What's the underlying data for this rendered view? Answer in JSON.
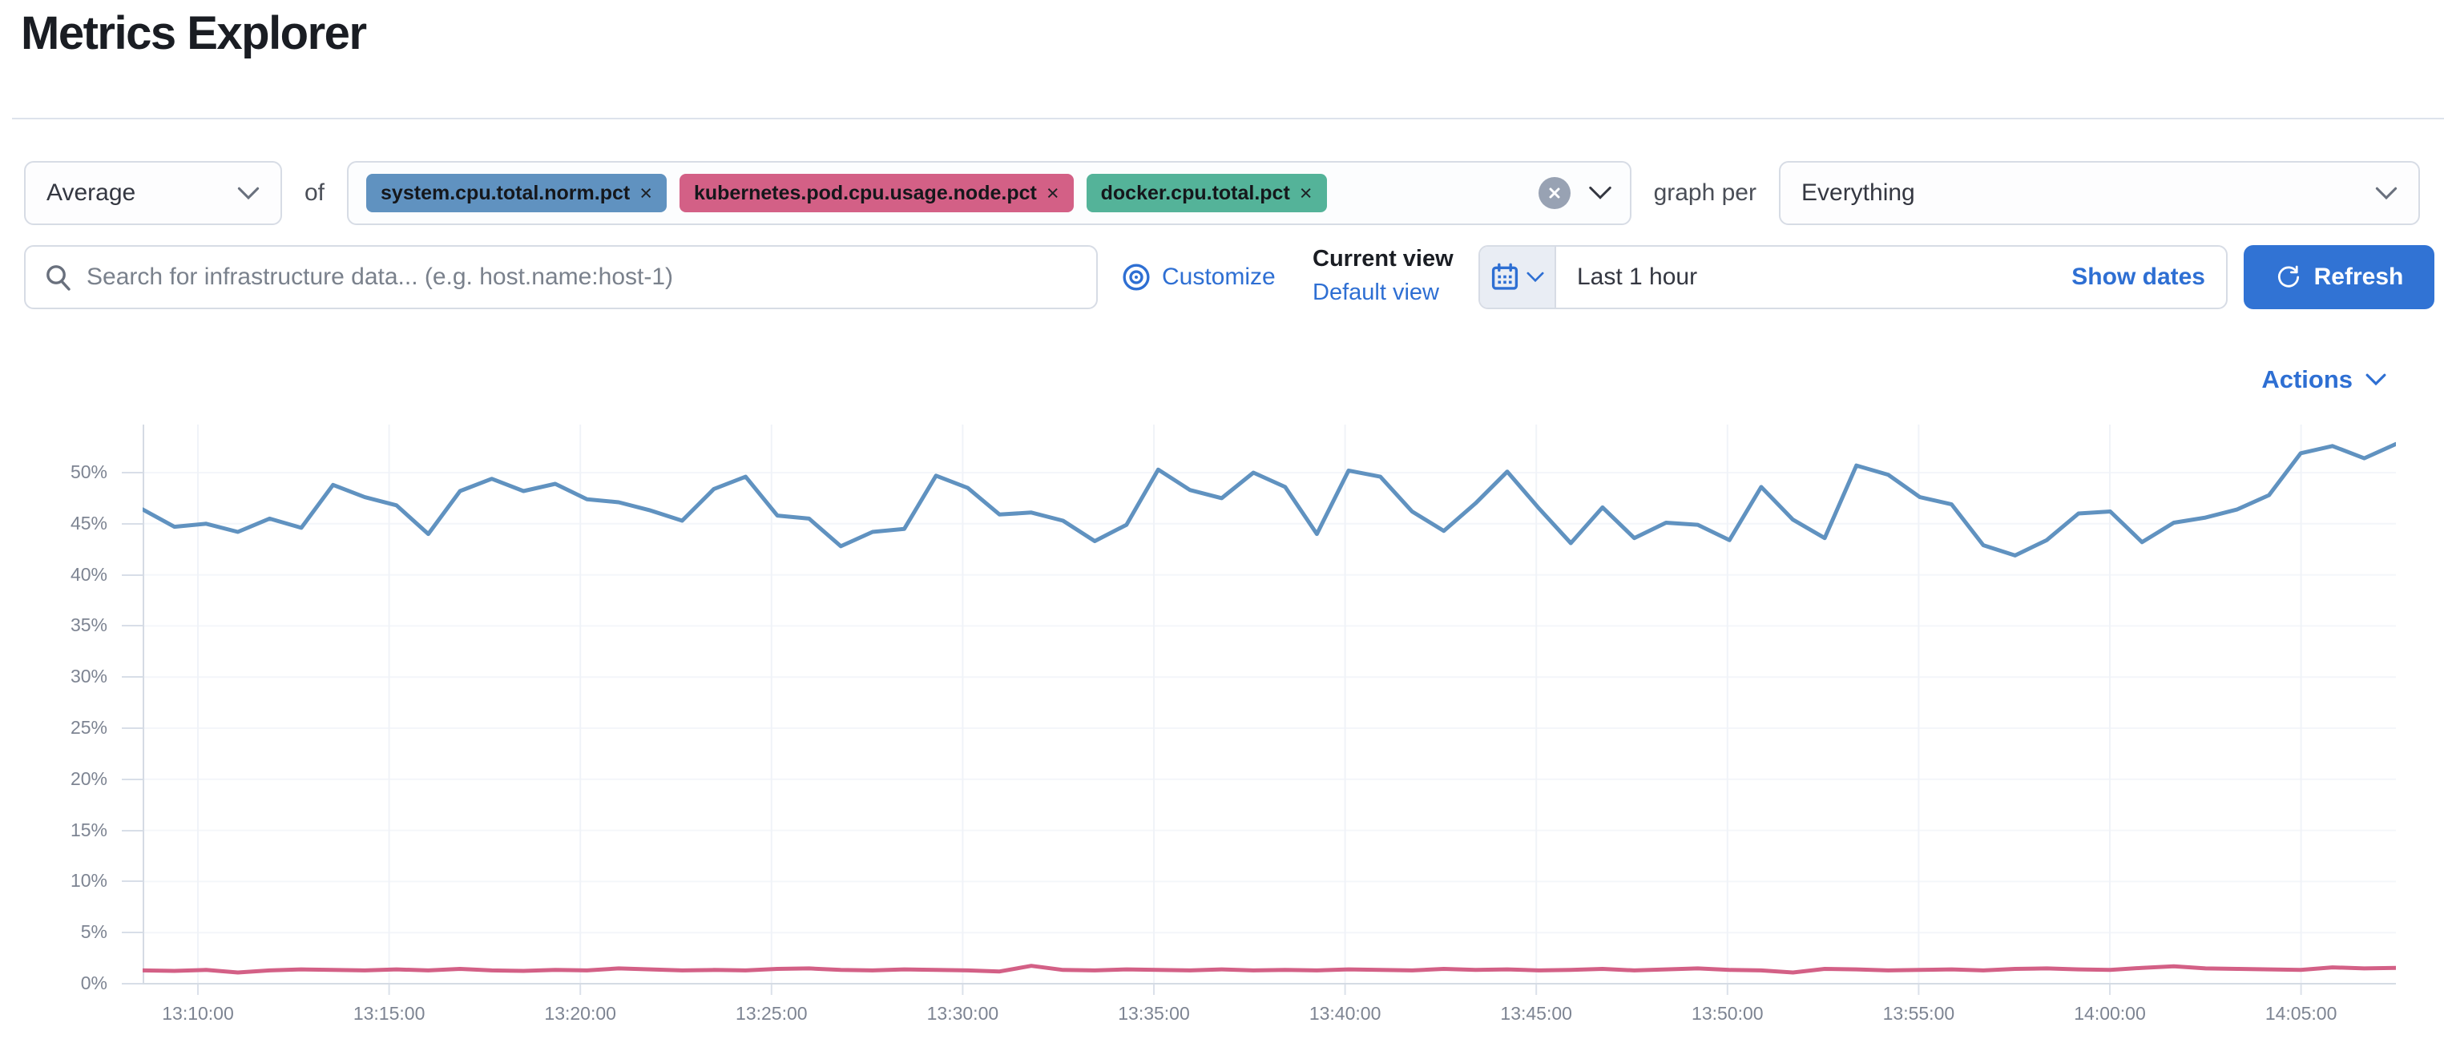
{
  "page": {
    "title": "Metrics Explorer"
  },
  "toolbar": {
    "aggregation": {
      "value": "Average"
    },
    "of_label": "of",
    "metrics": [
      {
        "label": "system.cpu.total.norm.pct",
        "color": "#6092C0"
      },
      {
        "label": "kubernetes.pod.cpu.usage.node.pct",
        "color": "#D36086"
      },
      {
        "label": "docker.cpu.total.pct",
        "color": "#54B399"
      }
    ],
    "graph_per_label": "graph per",
    "group_by": {
      "value": "Everything"
    }
  },
  "search": {
    "placeholder": "Search for infrastructure data... (e.g. host.name:host-1)"
  },
  "view_controls": {
    "customize_label": "Customize",
    "current_view_label": "Current view",
    "view_name": "Default view"
  },
  "time_picker": {
    "value": "Last 1 hour",
    "show_dates_label": "Show dates",
    "refresh_label": "Refresh"
  },
  "actions_label": "Actions",
  "colors": {
    "link_blue": "#2e6fd3",
    "button_blue": "#3173d4",
    "series_blue": "#6092C0",
    "series_pink": "#D36086"
  },
  "chart_data": {
    "type": "line",
    "title": "",
    "xlabel": "",
    "ylabel": "",
    "ylim": [
      0,
      54.8
    ],
    "grid": true,
    "legend": "none",
    "y_tick_labels": [
      "0%",
      "5%",
      "10%",
      "15%",
      "20%",
      "25%",
      "30%",
      "35%",
      "40%",
      "45%",
      "50%"
    ],
    "y_tick_values": [
      0,
      5,
      10,
      15,
      20,
      25,
      30,
      35,
      40,
      45,
      50
    ],
    "x_tick_labels": [
      "13:10:00",
      "13:15:00",
      "13:20:00",
      "13:25:00",
      "13:30:00",
      "13:35:00",
      "13:40:00",
      "13:45:00",
      "13:50:00",
      "13:55:00",
      "14:00:00",
      "14:05:00"
    ],
    "series": [
      {
        "name": "system.cpu.total.norm.pct (Average)",
        "color": "#6092C0",
        "unit": "%",
        "values": [
          46.4,
          44.7,
          45.0,
          44.2,
          45.5,
          44.6,
          48.8,
          47.6,
          46.8,
          44.0,
          48.2,
          49.4,
          48.2,
          48.9,
          47.4,
          47.1,
          46.3,
          45.3,
          48.4,
          49.6,
          45.8,
          45.5,
          42.8,
          44.2,
          44.5,
          49.7,
          48.5,
          45.9,
          46.1,
          45.3,
          43.3,
          44.9,
          50.3,
          48.3,
          47.5,
          50.0,
          48.6,
          44.0,
          50.2,
          49.6,
          46.2,
          44.3,
          47.0,
          50.1,
          46.5,
          43.1,
          46.6,
          43.6,
          45.1,
          44.9,
          43.4,
          48.6,
          45.4,
          43.6,
          50.7,
          49.8,
          47.6,
          46.9,
          42.9,
          41.9,
          43.4,
          46.0,
          46.2,
          43.2,
          45.1,
          45.6,
          46.4,
          47.8,
          51.9,
          52.6,
          51.4,
          52.8
        ]
      },
      {
        "name": "kubernetes.pod.cpu.usage.node.pct (Average)",
        "color": "#D36086",
        "unit": "%",
        "values": [
          1.3,
          1.25,
          1.35,
          1.1,
          1.3,
          1.4,
          1.35,
          1.3,
          1.4,
          1.3,
          1.45,
          1.3,
          1.25,
          1.35,
          1.3,
          1.5,
          1.4,
          1.3,
          1.35,
          1.3,
          1.45,
          1.5,
          1.35,
          1.3,
          1.4,
          1.35,
          1.3,
          1.2,
          1.75,
          1.35,
          1.3,
          1.4,
          1.35,
          1.3,
          1.4,
          1.3,
          1.35,
          1.3,
          1.4,
          1.35,
          1.3,
          1.45,
          1.35,
          1.4,
          1.3,
          1.35,
          1.45,
          1.3,
          1.4,
          1.5,
          1.35,
          1.3,
          1.1,
          1.45,
          1.4,
          1.3,
          1.35,
          1.4,
          1.3,
          1.45,
          1.5,
          1.4,
          1.35,
          1.55,
          1.7,
          1.5,
          1.45,
          1.4,
          1.35,
          1.6,
          1.5,
          1.55
        ]
      }
    ]
  }
}
